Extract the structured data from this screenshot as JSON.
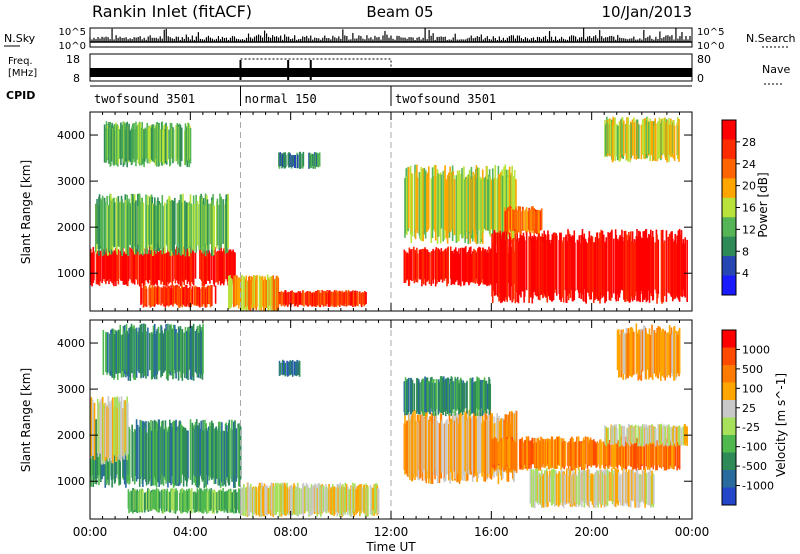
{
  "header": {
    "station": "Rankin Inlet (fitACF)",
    "beam": "Beam 05",
    "date": "10/Jan/2013"
  },
  "sky_panel": {
    "left_label": "N.Sky",
    "right_label": "N.Search",
    "ticks": [
      "10^5",
      "10^0"
    ]
  },
  "freq_panel": {
    "left_label_1": "Freq.",
    "left_label_2": "[MHz]",
    "right_label": "Nave",
    "left_ticks": [
      "18",
      "8"
    ],
    "right_ticks": [
      "80",
      "0"
    ]
  },
  "cpid": {
    "label": "CPID",
    "segments": [
      {
        "name": "twofsound 3501",
        "start_hour": 0,
        "end_hour": 6
      },
      {
        "name": "normal 150",
        "start_hour": 6,
        "end_hour": 12
      },
      {
        "name": "twofsound 3501",
        "start_hour": 12,
        "end_hour": 24
      }
    ]
  },
  "time_axis": {
    "label": "Time UT",
    "ticks": [
      "00:00",
      "04:00",
      "08:00",
      "12:00",
      "16:00",
      "20:00",
      "00:00"
    ]
  },
  "chart_data": [
    {
      "type": "heatmap",
      "parameter": "Power",
      "ylabel": "Slant Range [km]",
      "ylim": [
        180,
        4500
      ],
      "xlim_hours": [
        0,
        24
      ],
      "yticks": [
        1000,
        2000,
        3000,
        4000
      ],
      "colorbar": {
        "label": "Power [dB]",
        "ticks": [
          "4",
          "8",
          "12",
          "16",
          "20",
          "24",
          "28"
        ],
        "colors": [
          "#1a1aff",
          "#2845b4",
          "#2e8b57",
          "#55b455",
          "#b9e33a",
          "#ffa500",
          "#ff6400",
          "#ff2b00",
          "#ff0000"
        ]
      },
      "regions": [
        {
          "t0": 0.0,
          "t1": 5.8,
          "r0": 800,
          "r1": 1500,
          "level": 8
        },
        {
          "t0": 0.2,
          "t1": 5.5,
          "r0": 1500,
          "r1": 2600,
          "level": 3
        },
        {
          "t0": 0.5,
          "t1": 4.0,
          "r0": 3400,
          "r1": 4200,
          "level": 3
        },
        {
          "t0": 2.0,
          "t1": 5.0,
          "r0": 300,
          "r1": 700,
          "level": 7
        },
        {
          "t0": 5.5,
          "t1": 7.5,
          "r0": 250,
          "r1": 900,
          "level": 5
        },
        {
          "t0": 7.5,
          "t1": 11.0,
          "r0": 300,
          "r1": 600,
          "level": 7
        },
        {
          "t0": 7.5,
          "t1": 8.5,
          "r0": 3300,
          "r1": 3600,
          "level": 2
        },
        {
          "t0": 8.7,
          "t1": 9.2,
          "r0": 3300,
          "r1": 3600,
          "level": 2
        },
        {
          "t0": 12.5,
          "t1": 17.0,
          "r0": 800,
          "r1": 1500,
          "level": 8
        },
        {
          "t0": 12.5,
          "t1": 17.0,
          "r0": 1800,
          "r1": 3200,
          "level": 4
        },
        {
          "t0": 16.0,
          "t1": 23.8,
          "r0": 500,
          "r1": 1800,
          "level": 8
        },
        {
          "t0": 16.5,
          "t1": 18.0,
          "r0": 1900,
          "r1": 2400,
          "level": 6
        },
        {
          "t0": 20.5,
          "t1": 23.5,
          "r0": 3500,
          "r1": 4300,
          "level": 4
        }
      ]
    },
    {
      "type": "heatmap",
      "parameter": "Velocity",
      "ylabel": "Slant Range [km]",
      "ylim": [
        180,
        4500
      ],
      "xlim_hours": [
        0,
        24
      ],
      "yticks": [
        1000,
        2000,
        3000,
        4000
      ],
      "colorbar": {
        "label": "Velocity [m s^-1]",
        "ticks": [
          "1000",
          "500",
          "100",
          "25",
          "-25",
          "-100",
          "-500",
          "-1000"
        ],
        "colors": [
          "#2347c8",
          "#2a6b9d",
          "#2e8b57",
          "#4fb84f",
          "#a7e05a",
          "#c9c9c9",
          "#ffa500",
          "#ff7a00",
          "#ff4a00",
          "#ff0000"
        ]
      },
      "regions": [
        {
          "t0": 0.0,
          "t1": 6.0,
          "r0": 1000,
          "r1": 2200,
          "level": 2
        },
        {
          "t0": 0.5,
          "t1": 4.5,
          "r0": 3300,
          "r1": 4300,
          "level": 2
        },
        {
          "t0": 0.0,
          "t1": 1.5,
          "r0": 1500,
          "r1": 2700,
          "level": 5
        },
        {
          "t0": 1.5,
          "t1": 6.0,
          "r0": 350,
          "r1": 800,
          "level": 3
        },
        {
          "t0": 6.0,
          "t1": 11.5,
          "r0": 300,
          "r1": 900,
          "level": 5
        },
        {
          "t0": 7.5,
          "t1": 8.5,
          "r0": 3300,
          "r1": 3600,
          "level": 1
        },
        {
          "t0": 12.5,
          "t1": 17.0,
          "r0": 1100,
          "r1": 2400,
          "level": 6
        },
        {
          "t0": 12.5,
          "t1": 16.0,
          "r0": 2500,
          "r1": 3200,
          "level": 2
        },
        {
          "t0": 16.0,
          "t1": 23.5,
          "r0": 1300,
          "r1": 1900,
          "level": 7
        },
        {
          "t0": 17.5,
          "t1": 22.5,
          "r0": 500,
          "r1": 1200,
          "level": 5
        },
        {
          "t0": 20.5,
          "t1": 23.8,
          "r0": 1800,
          "r1": 2200,
          "level": 5
        },
        {
          "t0": 21.0,
          "t1": 23.5,
          "r0": 3300,
          "r1": 4300,
          "level": 6
        }
      ]
    }
  ]
}
